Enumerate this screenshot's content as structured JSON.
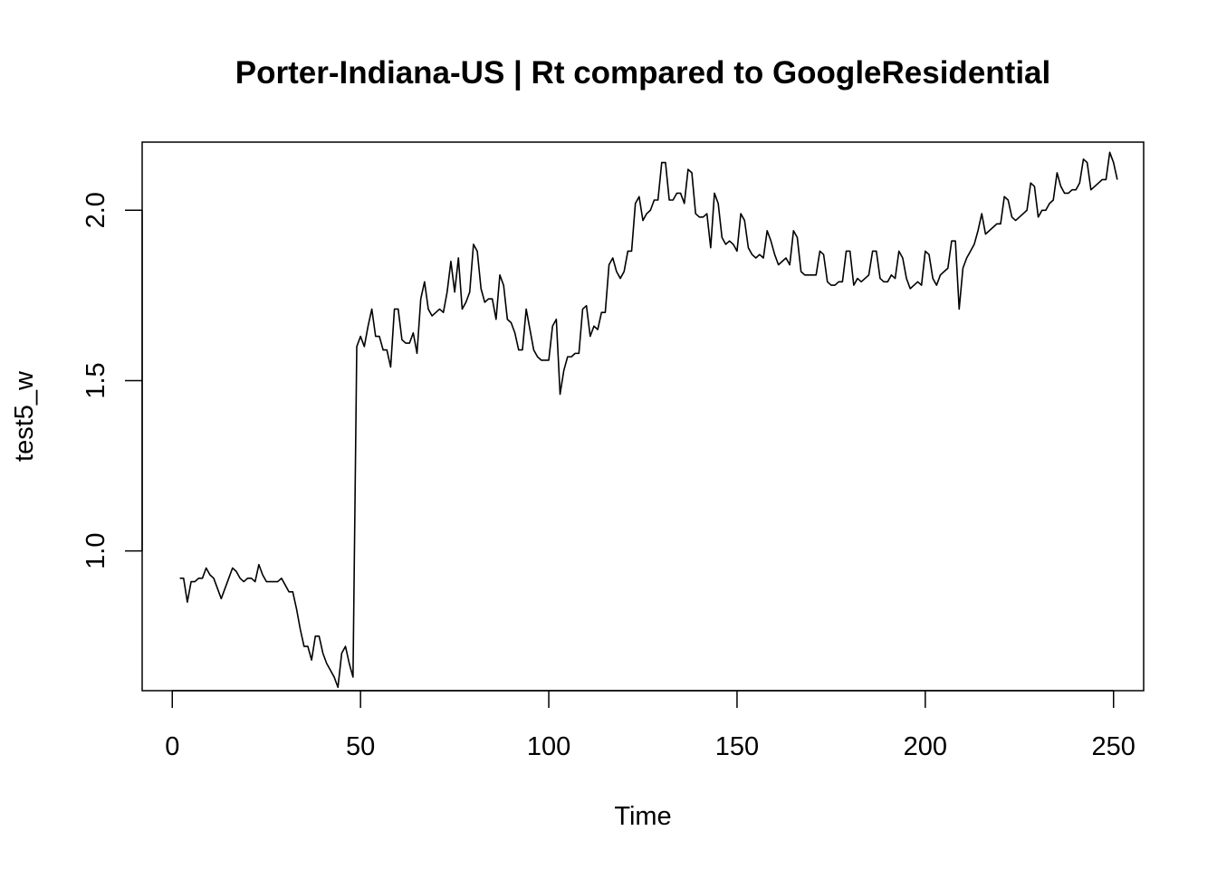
{
  "chart_data": {
    "type": "line",
    "title": "Porter-Indiana-US | Rt compared to GoogleResidential",
    "xlabel": "Time",
    "ylabel": "test5_w",
    "xlim": [
      -8,
      258
    ],
    "ylim": [
      0.59,
      2.2
    ],
    "x_ticks": [
      0,
      50,
      100,
      150,
      200,
      250
    ],
    "x_tick_labels": [
      "0",
      "50",
      "100",
      "150",
      "200",
      "250"
    ],
    "y_ticks": [
      1.0,
      1.5,
      2.0
    ],
    "y_tick_labels": [
      "1.0",
      "1.5",
      "2.0"
    ],
    "grid": false,
    "line_color": "#000000",
    "series": [
      {
        "x_start": 2,
        "x_step": 1,
        "values": [
          0.92,
          0.92,
          0.85,
          0.91,
          0.91,
          0.92,
          0.92,
          0.95,
          0.93,
          0.92,
          0.89,
          0.86,
          0.89,
          0.92,
          0.95,
          0.94,
          0.92,
          0.91,
          0.92,
          0.92,
          0.91,
          0.96,
          0.93,
          0.91,
          0.91,
          0.91,
          0.91,
          0.92,
          0.9,
          0.88,
          0.88,
          0.83,
          0.77,
          0.72,
          0.72,
          0.68,
          0.75,
          0.75,
          0.7,
          0.67,
          0.65,
          0.63,
          0.6,
          0.7,
          0.72,
          0.67,
          0.63,
          1.6,
          1.63,
          1.6,
          1.66,
          1.71,
          1.63,
          1.63,
          1.59,
          1.59,
          1.54,
          1.71,
          1.71,
          1.62,
          1.61,
          1.61,
          1.64,
          1.58,
          1.74,
          1.79,
          1.71,
          1.69,
          1.7,
          1.71,
          1.7,
          1.76,
          1.85,
          1.76,
          1.86,
          1.71,
          1.73,
          1.76,
          1.9,
          1.88,
          1.77,
          1.73,
          1.74,
          1.74,
          1.68,
          1.81,
          1.78,
          1.68,
          1.67,
          1.64,
          1.59,
          1.59,
          1.71,
          1.65,
          1.59,
          1.57,
          1.56,
          1.56,
          1.56,
          1.66,
          1.68,
          1.46,
          1.53,
          1.57,
          1.57,
          1.58,
          1.58,
          1.71,
          1.72,
          1.63,
          1.66,
          1.65,
          1.7,
          1.7,
          1.84,
          1.86,
          1.82,
          1.8,
          1.82,
          1.88,
          1.88,
          2.02,
          2.04,
          1.97,
          1.99,
          2.0,
          2.03,
          2.03,
          2.14,
          2.14,
          2.03,
          2.03,
          2.05,
          2.05,
          2.02,
          2.12,
          2.11,
          1.99,
          1.98,
          1.98,
          1.99,
          1.89,
          2.05,
          2.02,
          1.92,
          1.9,
          1.91,
          1.9,
          1.88,
          1.99,
          1.97,
          1.89,
          1.87,
          1.86,
          1.87,
          1.86,
          1.94,
          1.91,
          1.87,
          1.84,
          1.85,
          1.86,
          1.84,
          1.94,
          1.92,
          1.82,
          1.81,
          1.81,
          1.81,
          1.81,
          1.88,
          1.87,
          1.79,
          1.78,
          1.78,
          1.79,
          1.79,
          1.88,
          1.88,
          1.78,
          1.8,
          1.79,
          1.8,
          1.81,
          1.88,
          1.88,
          1.8,
          1.79,
          1.79,
          1.81,
          1.8,
          1.88,
          1.86,
          1.8,
          1.77,
          1.78,
          1.79,
          1.78,
          1.88,
          1.87,
          1.8,
          1.78,
          1.81,
          1.82,
          1.83,
          1.91,
          1.91,
          1.71,
          1.83,
          1.86,
          1.88,
          1.9,
          1.94,
          1.99,
          1.93,
          1.94,
          1.95,
          1.96,
          1.96,
          2.04,
          2.03,
          1.98,
          1.97,
          1.98,
          1.99,
          2.0,
          2.08,
          2.07,
          1.98,
          2.0,
          2.0,
          2.02,
          2.03,
          2.11,
          2.07,
          2.05,
          2.05,
          2.06,
          2.06,
          2.08,
          2.15,
          2.14,
          2.06,
          2.07,
          2.08,
          2.09,
          2.09,
          2.17,
          2.14,
          2.09
        ]
      }
    ]
  }
}
